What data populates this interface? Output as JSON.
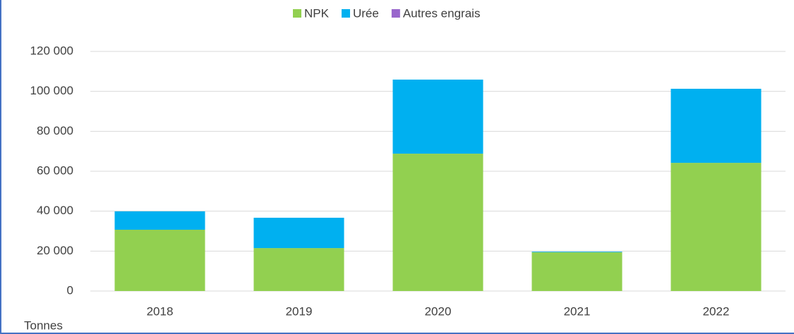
{
  "chart_data": {
    "type": "stacked_bar",
    "categories": [
      "2018",
      "2019",
      "2020",
      "2021",
      "2022"
    ],
    "series": [
      {
        "name": "NPK",
        "color": "#92d050",
        "values": [
          30700,
          21500,
          68800,
          19400,
          64200
        ]
      },
      {
        "name": "Urée",
        "color": "#00b0f0",
        "values": [
          9200,
          15200,
          37100,
          300,
          37100
        ]
      },
      {
        "name": "Autres engrais",
        "color": "#9966cc",
        "values": [
          0,
          0,
          0,
          0,
          0
        ]
      }
    ],
    "ylim": [
      0,
      120000
    ],
    "yticks": [
      0,
      {
        "value": 20000,
        "label": "20 000"
      },
      {
        "value": 40000,
        "label": "40 000"
      },
      {
        "value": 60000,
        "label": "60 000"
      },
      {
        "value": 80000,
        "label": "80 000"
      },
      {
        "value": 100000,
        "label": "100 000"
      },
      {
        "value": 120000,
        "label": "120 000"
      }
    ],
    "y_label": "Tonnes",
    "grid": true,
    "legend": "top"
  }
}
